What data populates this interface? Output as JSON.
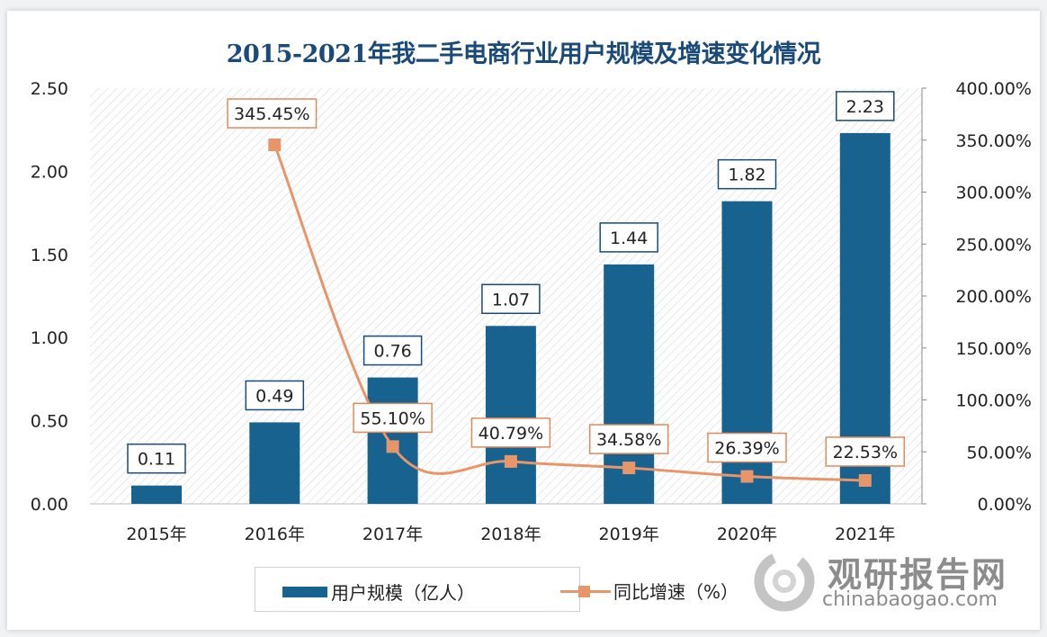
{
  "chart_data": {
    "type": "bar+line",
    "title": "2015-2021年我二手电商行业用户规模及增速变化情况",
    "categories": [
      "2015年",
      "2016年",
      "2017年",
      "2018年",
      "2019年",
      "2020年",
      "2021年"
    ],
    "series": [
      {
        "name": "用户规模（亿人）",
        "type": "bar",
        "axis": "left",
        "color": "#17628f",
        "values": [
          0.11,
          0.49,
          0.76,
          1.07,
          1.44,
          1.82,
          2.23
        ],
        "labels": [
          "0.11",
          "0.49",
          "0.76",
          "1.07",
          "1.44",
          "1.82",
          "2.23"
        ]
      },
      {
        "name": "同比增速（%）",
        "type": "line",
        "axis": "right",
        "color": "#e8956a",
        "values": [
          null,
          345.45,
          55.1,
          40.79,
          34.58,
          26.39,
          22.53
        ],
        "labels": [
          "",
          "345.45%",
          "55.10%",
          "40.79%",
          "34.58%",
          "26.39%",
          "22.53%"
        ]
      }
    ],
    "left_axis": {
      "min": 0,
      "max": 2.5,
      "ticks": [
        "0.00",
        "0.50",
        "1.00",
        "1.50",
        "2.00",
        "2.50"
      ]
    },
    "right_axis": {
      "min": 0,
      "max": 400,
      "ticks": [
        "0.00%",
        "50.00%",
        "100.00%",
        "150.00%",
        "200.00%",
        "250.00%",
        "300.00%",
        "350.00%",
        "400.00%"
      ]
    },
    "legend_position": "bottom",
    "grid": false
  },
  "watermark": {
    "name": "观研报告网",
    "url": "chinabaogao.com"
  }
}
